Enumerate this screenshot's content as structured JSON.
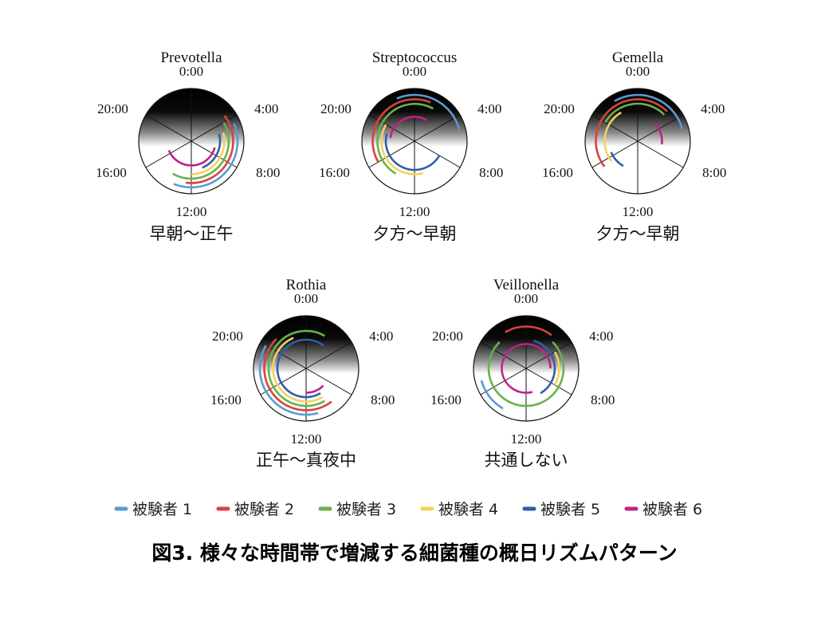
{
  "figure_caption": "図3. 様々な時間帯で増減する細菌種の概日リズムパターン",
  "time_ticks": [
    "0:00",
    "4:00",
    "8:00",
    "12:00",
    "16:00",
    "20:00"
  ],
  "legend": [
    {
      "label": "被験者 1",
      "color": "#5b9bd5"
    },
    {
      "label": "被験者 2",
      "color": "#d9443a"
    },
    {
      "label": "被験者 3",
      "color": "#6ab04c"
    },
    {
      "label": "被験者 4",
      "color": "#f2d35b"
    },
    {
      "label": "被験者 5",
      "color": "#2f5fa8"
    },
    {
      "label": "被験者 6",
      "color": "#c2208a"
    }
  ],
  "chart_data": [
    {
      "type": "polar-arc",
      "title": "Prevotella",
      "caption": "早朝～正午",
      "theta_ticks": [
        "0:00",
        "4:00",
        "8:00",
        "12:00",
        "16:00",
        "20:00"
      ],
      "series": [
        {
          "name": "被験者 1",
          "start_hour": 4.5,
          "end_hour": 13.5
        },
        {
          "name": "被験者 2",
          "start_hour": 3.5,
          "end_hour": 12.5
        },
        {
          "name": "被験者 3",
          "start_hour": 4,
          "end_hour": 14
        },
        {
          "name": "被験者 4",
          "start_hour": 5,
          "end_hour": 12
        },
        {
          "name": "被験者 5",
          "start_hour": 5,
          "end_hour": 10.5
        },
        {
          "name": "被験者 6",
          "start_hour": 7,
          "end_hour": 16.5
        }
      ]
    },
    {
      "type": "polar-arc",
      "title": "Streptococcus",
      "caption": "夕方～早朝",
      "theta_ticks": [
        "0:00",
        "4:00",
        "8:00",
        "12:00",
        "16:00",
        "20:00"
      ],
      "series": [
        {
          "name": "被験者 1",
          "start_hour": 22.5,
          "end_hour": 5
        },
        {
          "name": "被験者 2",
          "start_hour": 16,
          "end_hour": 1.5
        },
        {
          "name": "被験者 3",
          "start_hour": 14,
          "end_hour": 2
        },
        {
          "name": "被験者 4",
          "start_hour": 11,
          "end_hour": 20
        },
        {
          "name": "被験者 5",
          "start_hour": 8,
          "end_hour": 19
        },
        {
          "name": "被験者 6",
          "start_hour": 18.5,
          "end_hour": 2
        }
      ]
    },
    {
      "type": "polar-arc",
      "title": "Gemella",
      "caption": "夕方～早朝",
      "theta_ticks": [
        "0:00",
        "4:00",
        "8:00",
        "12:00",
        "16:00",
        "20:00"
      ],
      "series": [
        {
          "name": "被験者 1",
          "start_hour": 22,
          "end_hour": 5
        },
        {
          "name": "被験者 2",
          "start_hour": 15.5,
          "end_hour": 3
        },
        {
          "name": "被験者 3",
          "start_hour": 20,
          "end_hour": 3
        },
        {
          "name": "被験者 4",
          "start_hour": 15.5,
          "end_hour": 22
        },
        {
          "name": "被験者 5",
          "start_hour": 14,
          "end_hour": 16.5
        },
        {
          "name": "被験者 6",
          "start_hour": 3,
          "end_hour": 6.5
        }
      ]
    },
    {
      "type": "polar-arc",
      "title": "Rothia",
      "caption": "正午～真夜中",
      "theta_ticks": [
        "0:00",
        "4:00",
        "8:00",
        "12:00",
        "16:00",
        "20:00"
      ],
      "series": [
        {
          "name": "被験者 1",
          "start_hour": 11,
          "end_hour": 20
        },
        {
          "name": "被験者 2",
          "start_hour": 9.5,
          "end_hour": 21
        },
        {
          "name": "被験者 3",
          "start_hour": 10,
          "end_hour": 2
        },
        {
          "name": "被験者 4",
          "start_hour": 10,
          "end_hour": 22.5
        },
        {
          "name": "被験者 5",
          "start_hour": 10,
          "end_hour": 2.5
        },
        {
          "name": "被験者 6",
          "start_hour": 9,
          "end_hour": 12
        }
      ]
    },
    {
      "type": "polar-arc",
      "title": "Veillonella",
      "caption": "共通しない",
      "theta_ticks": [
        "0:00",
        "4:00",
        "8:00",
        "12:00",
        "16:00",
        "20:00"
      ],
      "series": [
        {
          "name": "被験者 1",
          "start_hour": 14,
          "end_hour": 17
        },
        {
          "name": "被験者 2",
          "start_hour": 22,
          "end_hour": 2.5
        },
        {
          "name": "被験者 3",
          "start_hour": 3,
          "end_hour": 21
        },
        {
          "name": "被験者 4",
          "start_hour": 4,
          "end_hour": 8
        },
        {
          "name": "被験者 5",
          "start_hour": 1,
          "end_hour": 10
        },
        {
          "name": "被験者 6",
          "start_hour": 11,
          "end_hour": 6
        }
      ]
    }
  ]
}
